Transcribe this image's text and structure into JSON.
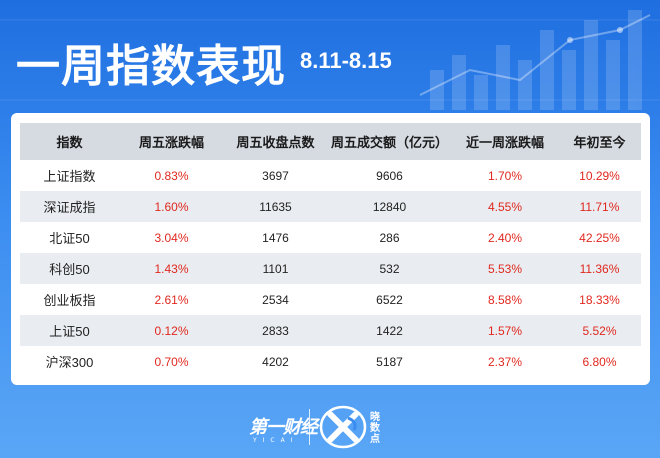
{
  "header": {
    "title": "一周指数表现",
    "date_range": "8.11-8.15"
  },
  "table": {
    "columns": [
      "指数",
      "周五涨跌幅",
      "周五收盘点数",
      "周五成交额（亿元）",
      "近一周涨跌幅",
      "年初至今"
    ],
    "rows": [
      {
        "name": "上证指数",
        "fri_change": "0.83%",
        "fri_close": "3697",
        "fri_turnover": "9606",
        "week_change": "1.70%",
        "ytd": "10.29%"
      },
      {
        "name": "深证成指",
        "fri_change": "1.60%",
        "fri_close": "11635",
        "fri_turnover": "12840",
        "week_change": "4.55%",
        "ytd": "11.71%"
      },
      {
        "name": "北证50",
        "fri_change": "3.04%",
        "fri_close": "1476",
        "fri_turnover": "286",
        "week_change": "2.40%",
        "ytd": "42.25%"
      },
      {
        "name": "科创50",
        "fri_change": "1.43%",
        "fri_close": "1101",
        "fri_turnover": "532",
        "week_change": "5.53%",
        "ytd": "11.36%"
      },
      {
        "name": "创业板指",
        "fri_change": "2.61%",
        "fri_close": "2534",
        "fri_turnover": "6522",
        "week_change": "8.58%",
        "ytd": "18.33%"
      },
      {
        "name": "上证50",
        "fri_change": "0.12%",
        "fri_close": "2833",
        "fri_turnover": "1422",
        "week_change": "1.57%",
        "ytd": "5.52%"
      },
      {
        "name": "沪深300",
        "fri_change": "0.70%",
        "fri_close": "4202",
        "fri_turnover": "5187",
        "week_change": "2.37%",
        "ytd": "6.80%"
      }
    ]
  },
  "footer": {
    "logo_yicai": "第一财经",
    "logo_yicai_sub": "YICAI",
    "logo_kandian": "晓数点"
  },
  "colors": {
    "positive": "#e0281f",
    "header_bg": "#d6dbe2",
    "background": "#2d7fe6"
  },
  "icons": [
    "bar-chart-decoration-icon",
    "yicai-logo-icon",
    "xiaoshudian-logo-icon"
  ]
}
